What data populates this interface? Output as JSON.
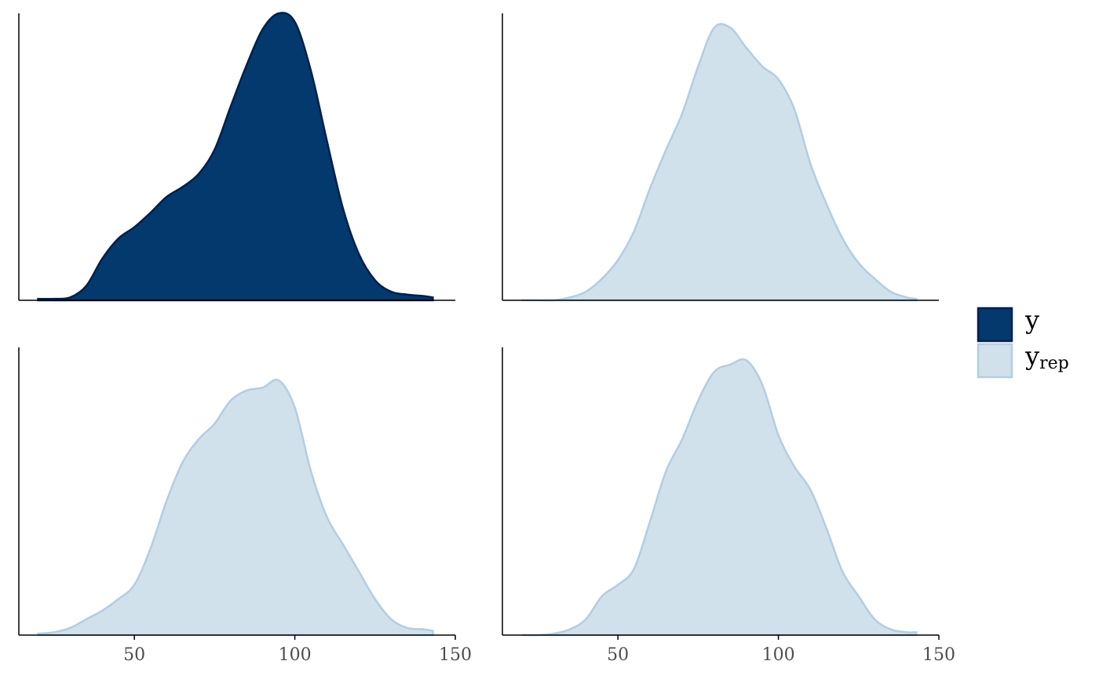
{
  "chart_data": [
    {
      "type": "area",
      "x": [
        20,
        25,
        30,
        35,
        40,
        45,
        50,
        55,
        60,
        65,
        70,
        75,
        80,
        85,
        90,
        95,
        100,
        105,
        110,
        115,
        120,
        125,
        130,
        135,
        140,
        143
      ],
      "series": [
        {
          "name": "y",
          "color": "#011f4b",
          "fill": "#03396c",
          "values": [
            0.0001,
            0.0001,
            0.0002,
            0.001,
            0.0029,
            0.0043,
            0.0051,
            0.0061,
            0.0072,
            0.0079,
            0.0088,
            0.0105,
            0.0135,
            0.0164,
            0.0189,
            0.02,
            0.0194,
            0.016,
            0.0111,
            0.0064,
            0.0032,
            0.0014,
            0.0006,
            0.0004,
            0.0003,
            0.0002
          ]
        }
      ],
      "xlim": [
        14,
        150
      ],
      "ylim": [
        0,
        0.02
      ]
    },
    {
      "type": "area",
      "x": [
        20,
        25,
        30,
        35,
        40,
        45,
        50,
        55,
        60,
        65,
        70,
        75,
        80,
        85,
        90,
        95,
        100,
        105,
        110,
        115,
        120,
        125,
        130,
        135,
        140,
        143
      ],
      "series": [
        {
          "name": "y",
          "name_subscript": "rep",
          "color": "#b3cde0",
          "fill": "#d1e1ec",
          "values": [
            0,
            0,
            0,
            0.0002,
            0.0006,
            0.0015,
            0.0028,
            0.0048,
            0.0078,
            0.0105,
            0.013,
            0.0163,
            0.019,
            0.019,
            0.0176,
            0.0163,
            0.0154,
            0.0133,
            0.0095,
            0.0067,
            0.0043,
            0.0026,
            0.0015,
            0.0006,
            0.0002,
            0.0001
          ]
        }
      ],
      "xlim": [
        14,
        150
      ],
      "ylim": [
        0,
        0.02
      ]
    },
    {
      "type": "area",
      "x": [
        20,
        25,
        30,
        35,
        40,
        45,
        50,
        55,
        60,
        65,
        70,
        75,
        80,
        85,
        90,
        95,
        100,
        105,
        110,
        115,
        120,
        125,
        130,
        135,
        140,
        143
      ],
      "series": [
        {
          "name": "y",
          "name_subscript": "rep",
          "color": "#b3cde0",
          "fill": "#d1e1ec",
          "values": [
            0.0001,
            0.0002,
            0.0005,
            0.0011,
            0.0017,
            0.0025,
            0.0035,
            0.006,
            0.0093,
            0.012,
            0.0136,
            0.0147,
            0.0163,
            0.017,
            0.0172,
            0.0177,
            0.0158,
            0.0114,
            0.0082,
            0.0063,
            0.0044,
            0.0025,
            0.0011,
            0.0005,
            0.0004,
            0.0003
          ]
        }
      ],
      "xlim": [
        14,
        150
      ],
      "ylim": [
        0,
        0.02
      ],
      "xticks": [
        50,
        100,
        150
      ]
    },
    {
      "type": "area",
      "x": [
        20,
        25,
        30,
        35,
        40,
        45,
        50,
        55,
        60,
        65,
        70,
        75,
        80,
        85,
        90,
        95,
        100,
        105,
        110,
        115,
        120,
        125,
        130,
        135,
        140,
        143
      ],
      "series": [
        {
          "name": "y",
          "name_subscript": "rep",
          "color": "#b3cde0",
          "fill": "#d1e1ec",
          "values": [
            0,
            0,
            0.0001,
            0.0004,
            0.0011,
            0.0027,
            0.0035,
            0.0046,
            0.0079,
            0.0114,
            0.0136,
            0.0163,
            0.0183,
            0.0188,
            0.0191,
            0.0174,
            0.0139,
            0.0117,
            0.0101,
            0.0074,
            0.0044,
            0.0027,
            0.0011,
            0.0004,
            0.0002,
            0.0002
          ]
        }
      ],
      "xlim": [
        14,
        150
      ],
      "ylim": [
        0,
        0.02
      ],
      "xticks": [
        50,
        100,
        150
      ]
    }
  ]
}
